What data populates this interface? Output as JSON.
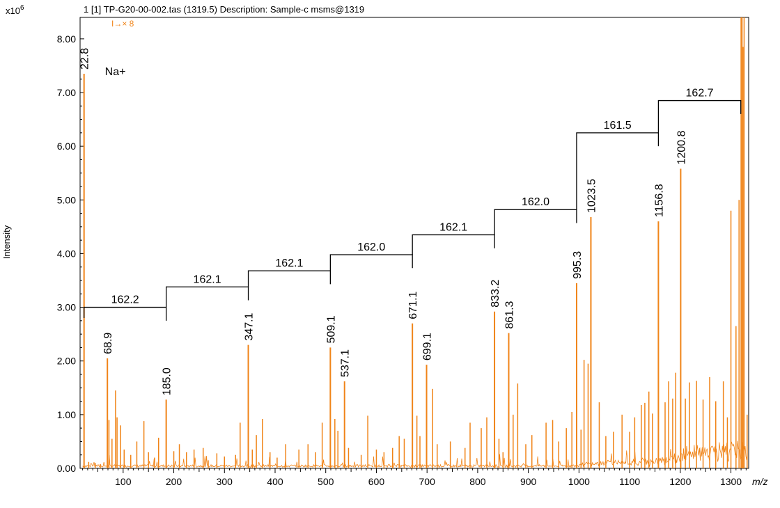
{
  "header": {
    "run_label": "1 [1] TP-G20-00-002.tas (1319.5)   Description: Sample-c msms@1319",
    "y_scale": "x10",
    "y_scale_exp": "6",
    "zoom_marker": "I→× 8"
  },
  "chart_data": {
    "type": "line",
    "title": "",
    "xlabel": "m/z",
    "ylabel": "Intensity",
    "xlim": [
      15,
      1335
    ],
    "ylim": [
      0,
      8.4
    ],
    "x_ticks": [
      100,
      200,
      300,
      400,
      500,
      600,
      700,
      800,
      900,
      1000,
      1100,
      1200,
      1300
    ],
    "x_tick_labels": [
      "100",
      "200",
      "300",
      "400",
      "500",
      "600",
      "700",
      "800",
      "900",
      "1000",
      "1100",
      "1200",
      "1300"
    ],
    "y_ticks": [
      0,
      1,
      2,
      3,
      4,
      5,
      6,
      7,
      8
    ],
    "y_tick_labels": [
      "0.00",
      "1.00",
      "2.00",
      "3.00",
      "4.00",
      "5.00",
      "6.00",
      "7.00",
      "8.00"
    ],
    "series_color": "#f08418",
    "labeled_peaks": [
      {
        "mz": 22.8,
        "intensity": 7.35,
        "label": "22.8"
      },
      {
        "mz": 68.9,
        "intensity": 2.05,
        "label": "68.9"
      },
      {
        "mz": 185.0,
        "intensity": 1.28,
        "label": "185.0"
      },
      {
        "mz": 347.1,
        "intensity": 2.3,
        "label": "347.1"
      },
      {
        "mz": 509.1,
        "intensity": 2.25,
        "label": "509.1"
      },
      {
        "mz": 537.1,
        "intensity": 1.62,
        "label": "537.1"
      },
      {
        "mz": 671.1,
        "intensity": 2.7,
        "label": "671.1"
      },
      {
        "mz": 699.1,
        "intensity": 1.93,
        "label": "699.1"
      },
      {
        "mz": 833.2,
        "intensity": 2.92,
        "label": "833.2"
      },
      {
        "mz": 861.3,
        "intensity": 2.52,
        "label": "861.3"
      },
      {
        "mz": 995.3,
        "intensity": 3.45,
        "label": "995.3"
      },
      {
        "mz": 1023.5,
        "intensity": 4.68,
        "label": "1023.5"
      },
      {
        "mz": 1156.8,
        "intensity": 4.6,
        "label": "1156.8"
      },
      {
        "mz": 1200.8,
        "intensity": 5.58,
        "label": "1200.8"
      }
    ],
    "minor_peaks": [
      [
        32,
        0.12
      ],
      [
        45,
        0.1
      ],
      [
        55,
        0.08
      ],
      [
        72,
        0.9
      ],
      [
        78,
        0.55
      ],
      [
        85,
        1.45
      ],
      [
        88,
        0.95
      ],
      [
        95,
        0.8
      ],
      [
        102,
        0.35
      ],
      [
        115,
        0.25
      ],
      [
        127,
        0.5
      ],
      [
        141,
        0.88
      ],
      [
        150,
        0.3
      ],
      [
        162,
        0.2
      ],
      [
        170,
        0.57
      ],
      [
        200,
        0.32
      ],
      [
        211,
        0.45
      ],
      [
        225,
        0.3
      ],
      [
        240,
        0.35
      ],
      [
        258,
        0.38
      ],
      [
        268,
        0.15
      ],
      [
        285,
        0.28
      ],
      [
        300,
        0.22
      ],
      [
        322,
        0.25
      ],
      [
        331,
        0.85
      ],
      [
        355,
        0.35
      ],
      [
        363,
        0.62
      ],
      [
        375,
        0.92
      ],
      [
        390,
        0.3
      ],
      [
        404,
        0.2
      ],
      [
        421,
        0.45
      ],
      [
        447,
        0.35
      ],
      [
        465,
        0.45
      ],
      [
        480,
        0.3
      ],
      [
        493,
        0.85
      ],
      [
        518,
        0.92
      ],
      [
        524,
        0.7
      ],
      [
        545,
        0.38
      ],
      [
        570,
        0.25
      ],
      [
        583,
        0.98
      ],
      [
        600,
        0.35
      ],
      [
        615,
        0.3
      ],
      [
        632,
        0.38
      ],
      [
        645,
        0.6
      ],
      [
        655,
        0.55
      ],
      [
        680,
        0.98
      ],
      [
        686,
        0.6
      ],
      [
        711,
        1.48
      ],
      [
        720,
        0.45
      ],
      [
        746,
        0.5
      ],
      [
        775,
        0.38
      ],
      [
        785,
        0.85
      ],
      [
        807,
        0.75
      ],
      [
        818,
        0.95
      ],
      [
        842,
        0.55
      ],
      [
        850,
        0.3
      ],
      [
        870,
        1.0
      ],
      [
        879,
        1.58
      ],
      [
        895,
        0.45
      ],
      [
        907,
        0.62
      ],
      [
        935,
        0.85
      ],
      [
        948,
        0.9
      ],
      [
        960,
        0.5
      ],
      [
        975,
        0.75
      ],
      [
        986,
        1.05
      ],
      [
        1004,
        0.72
      ],
      [
        1010,
        2.02
      ],
      [
        1018,
        1.95
      ],
      [
        1040,
        1.23
      ],
      [
        1053,
        0.6
      ],
      [
        1068,
        0.68
      ],
      [
        1085,
        1.0
      ],
      [
        1100,
        0.68
      ],
      [
        1110,
        0.95
      ],
      [
        1123,
        1.18
      ],
      [
        1130,
        1.22
      ],
      [
        1138,
        1.43
      ],
      [
        1145,
        1.02
      ],
      [
        1170,
        1.23
      ],
      [
        1177,
        1.62
      ],
      [
        1185,
        1.3
      ],
      [
        1191,
        1.78
      ],
      [
        1210,
        1.3
      ],
      [
        1218,
        1.6
      ],
      [
        1232,
        1.63
      ],
      [
        1245,
        1.28
      ],
      [
        1258,
        1.7
      ],
      [
        1270,
        1.25
      ],
      [
        1285,
        1.62
      ],
      [
        1293,
        0.95
      ],
      [
        1300,
        4.8
      ],
      [
        1310,
        2.65
      ],
      [
        1316,
        5.0
      ],
      [
        1320,
        8.4
      ],
      [
        1322,
        8.4
      ],
      [
        1324,
        7.85
      ],
      [
        1326,
        8.4
      ],
      [
        1332,
        1.0
      ]
    ],
    "annotations": [
      {
        "text": "Na+",
        "mz": 22.8
      }
    ],
    "mass_gaps": [
      {
        "from": 22.8,
        "to": 185.0,
        "level": 3.0,
        "label": "162.2"
      },
      {
        "from": 185.0,
        "to": 347.1,
        "level": 3.38,
        "label": "162.1"
      },
      {
        "from": 347.1,
        "to": 509.1,
        "level": 3.68,
        "label": "162.1"
      },
      {
        "from": 509.1,
        "to": 671.1,
        "level": 3.98,
        "label": "162.0"
      },
      {
        "from": 671.1,
        "to": 833.2,
        "level": 4.35,
        "label": "162.1"
      },
      {
        "from": 833.2,
        "to": 995.3,
        "level": 4.82,
        "label": "162.0"
      },
      {
        "from": 995.3,
        "to": 1156.8,
        "level": 6.25,
        "label": "161.5"
      },
      {
        "from": 1156.8,
        "to": 1319.5,
        "level": 6.85,
        "label": "162.7"
      }
    ]
  }
}
